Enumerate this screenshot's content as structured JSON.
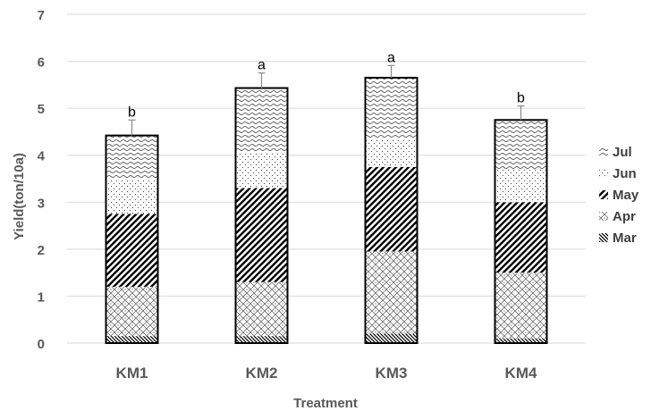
{
  "chart_data": {
    "type": "bar",
    "stacked": true,
    "categories": [
      "KM1",
      "KM2",
      "KM3",
      "KM4"
    ],
    "series": [
      {
        "name": "Mar",
        "values": [
          0.15,
          0.15,
          0.2,
          0.1
        ],
        "pattern": "diag-back-dense"
      },
      {
        "name": "Apr",
        "values": [
          1.05,
          1.15,
          1.75,
          1.4
        ],
        "pattern": "crosshatch-small"
      },
      {
        "name": "May",
        "values": [
          1.55,
          2.0,
          1.8,
          1.5
        ],
        "pattern": "diag-wide"
      },
      {
        "name": "Jun",
        "values": [
          0.75,
          0.75,
          0.6,
          0.7
        ],
        "pattern": "dots"
      },
      {
        "name": "Jul",
        "values": [
          0.92,
          1.38,
          1.3,
          1.05
        ],
        "pattern": "waves"
      }
    ],
    "error_bars": [
      0.33,
      0.32,
      0.26,
      0.3
    ],
    "significance_labels": [
      "b",
      "a",
      "a",
      "b"
    ],
    "xlabel": "Treatment",
    "ylabel": "Yield(ton/10a)",
    "ylim": [
      0,
      7
    ],
    "yticks": [
      0,
      1,
      2,
      3,
      4,
      5,
      6,
      7
    ],
    "grid": true,
    "legend_position": "right"
  },
  "colors": {
    "bar_stroke": "#000000",
    "grid": "#d9d9d9",
    "axis_text": "#595959"
  }
}
